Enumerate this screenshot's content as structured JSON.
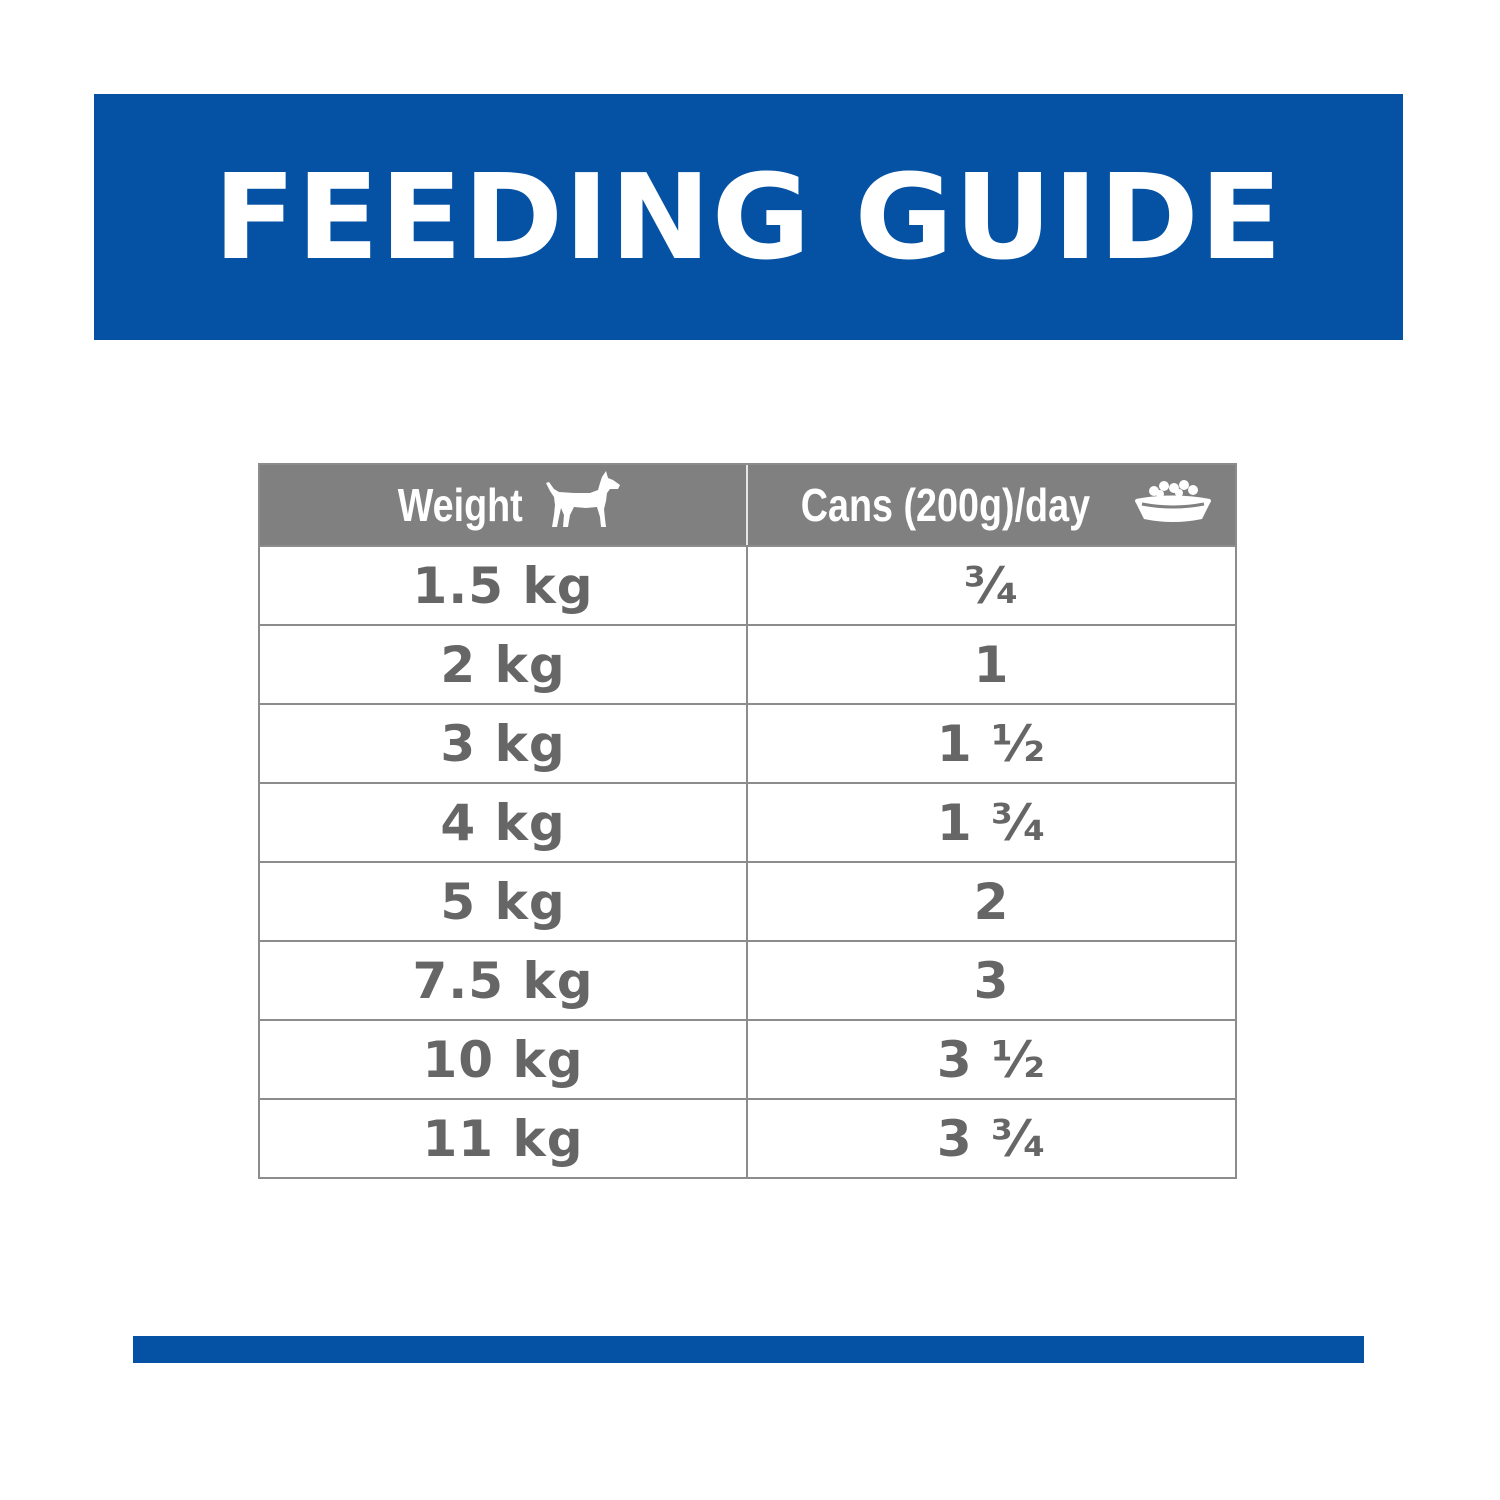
{
  "banner": {
    "title": "FEEDING GUIDE",
    "color": "#0552a4"
  },
  "table": {
    "header": {
      "weight_label": "Weight",
      "weight_icon": "dog-icon",
      "cans_label": "Cans (200g)/day",
      "cans_icon": "food-bowl-icon",
      "background": "#808080"
    },
    "rows": [
      {
        "weight": "1.5 kg",
        "cans": "³⁄₄"
      },
      {
        "weight": "2 kg",
        "cans": "1"
      },
      {
        "weight": "3 kg",
        "cans": "1 ¹⁄₂"
      },
      {
        "weight": "4 kg",
        "cans": "1 ³⁄₄"
      },
      {
        "weight": "5 kg",
        "cans": "2"
      },
      {
        "weight": "7.5 kg",
        "cans": "3"
      },
      {
        "weight": "10 kg",
        "cans": "3 ¹⁄₂"
      },
      {
        "weight": "11 kg",
        "cans": "3 ³⁄₄"
      }
    ],
    "text_color": "#666666"
  },
  "footer_bar": {
    "color": "#0552a4"
  }
}
